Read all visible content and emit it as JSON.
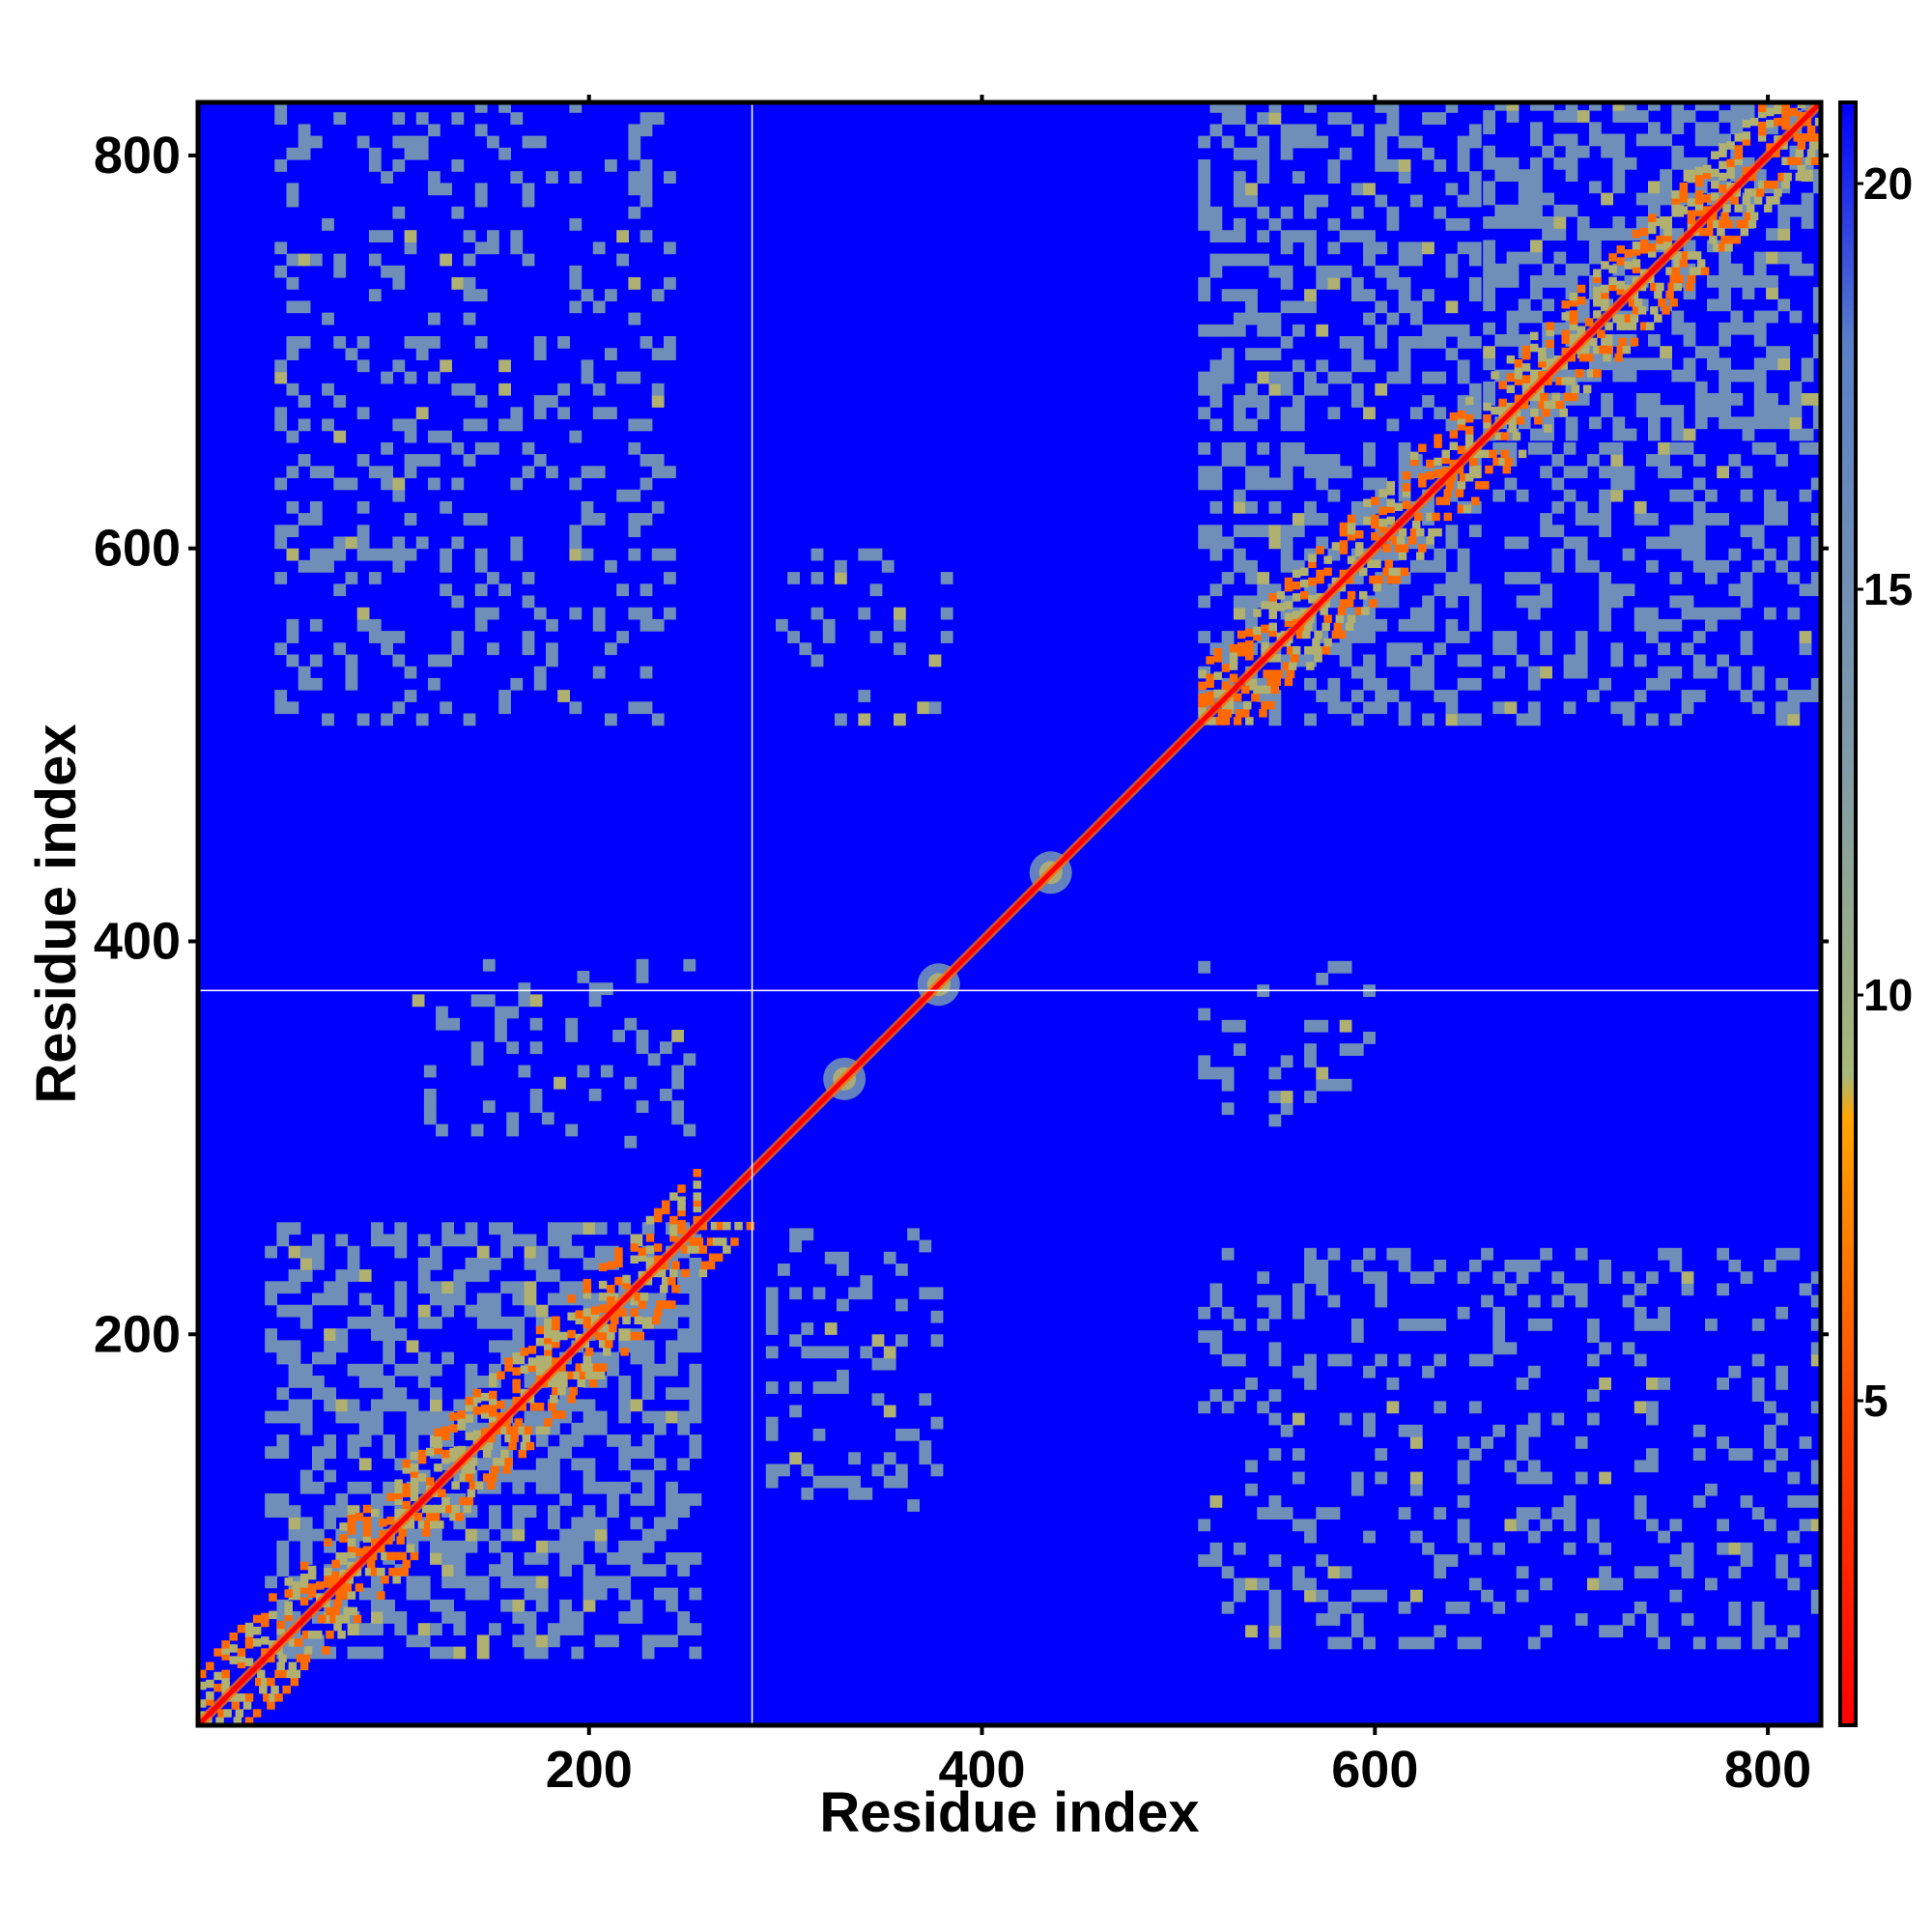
{
  "chart_data": {
    "type": "heatmap",
    "title": "",
    "xlabel": "Residue index",
    "ylabel": "Residue index",
    "xlim": [
      1,
      827
    ],
    "ylim": [
      1,
      827
    ],
    "x_ticks": [
      200,
      400,
      600,
      800
    ],
    "y_ticks": [
      200,
      400,
      600,
      800
    ],
    "x_tick_labels": [
      "200",
      "400",
      "600",
      "800"
    ],
    "y_tick_labels": [
      "200",
      "400",
      "600",
      "800"
    ],
    "colorbar": {
      "range": [
        1,
        21
      ],
      "ticks": [
        5,
        10,
        15,
        20
      ],
      "tick_labels": [
        "5",
        "10",
        "15",
        "20"
      ],
      "stops": [
        {
          "value": 1,
          "color": "#ff0000"
        },
        {
          "value": 5,
          "color": "#ff4a00"
        },
        {
          "value": 8.5,
          "color": "#ffa500"
        },
        {
          "value": 9,
          "color": "#a8b878"
        },
        {
          "value": 13,
          "color": "#7f9aa8"
        },
        {
          "value": 18,
          "color": "#5a80c8"
        },
        {
          "value": 21,
          "color": "#0000ff"
        }
      ],
      "background_color": "#0000ff",
      "contact_color": "#6f8fb8",
      "near_color": "#b0b070",
      "close_color": "#ff6a00",
      "diagonal_color": "#ff0000"
    },
    "guide_lines": {
      "x": 283,
      "y": 375
    },
    "domains": [
      {
        "start": 1,
        "end": 255
      },
      {
        "start": 510,
        "end": 650
      },
      {
        "start": 655,
        "end": 827
      }
    ],
    "diagonal_blobs": [
      330,
      378,
      435
    ],
    "contact_regions": [
      {
        "x": [
          35,
          255
        ],
        "y": [
          35,
          255
        ],
        "density": 0.85
      },
      {
        "x": [
          510,
          650
        ],
        "y": [
          510,
          650
        ],
        "density": 0.8
      },
      {
        "x": [
          655,
          827
        ],
        "y": [
          655,
          827
        ],
        "density": 0.8
      },
      {
        "x": [
          510,
          650
        ],
        "y": [
          660,
          827
        ],
        "density": 0.65
      },
      {
        "x": [
          660,
          827
        ],
        "y": [
          510,
          650
        ],
        "density": 0.55
      },
      {
        "x": [
          40,
          240
        ],
        "y": [
          510,
          827
        ],
        "density": 0.35
      },
      {
        "x": [
          510,
          827
        ],
        "y": [
          40,
          240
        ],
        "density": 0.35
      },
      {
        "x": [
          110,
          250
        ],
        "y": [
          295,
          390
        ],
        "density": 0.35
      },
      {
        "x": [
          290,
          380
        ],
        "y": [
          110,
          250
        ],
        "density": 0.4
      },
      {
        "x": [
          295,
          380
        ],
        "y": [
          510,
          600
        ],
        "density": 0.25
      },
      {
        "x": [
          510,
          600
        ],
        "y": [
          300,
          385
        ],
        "density": 0.25
      }
    ]
  }
}
